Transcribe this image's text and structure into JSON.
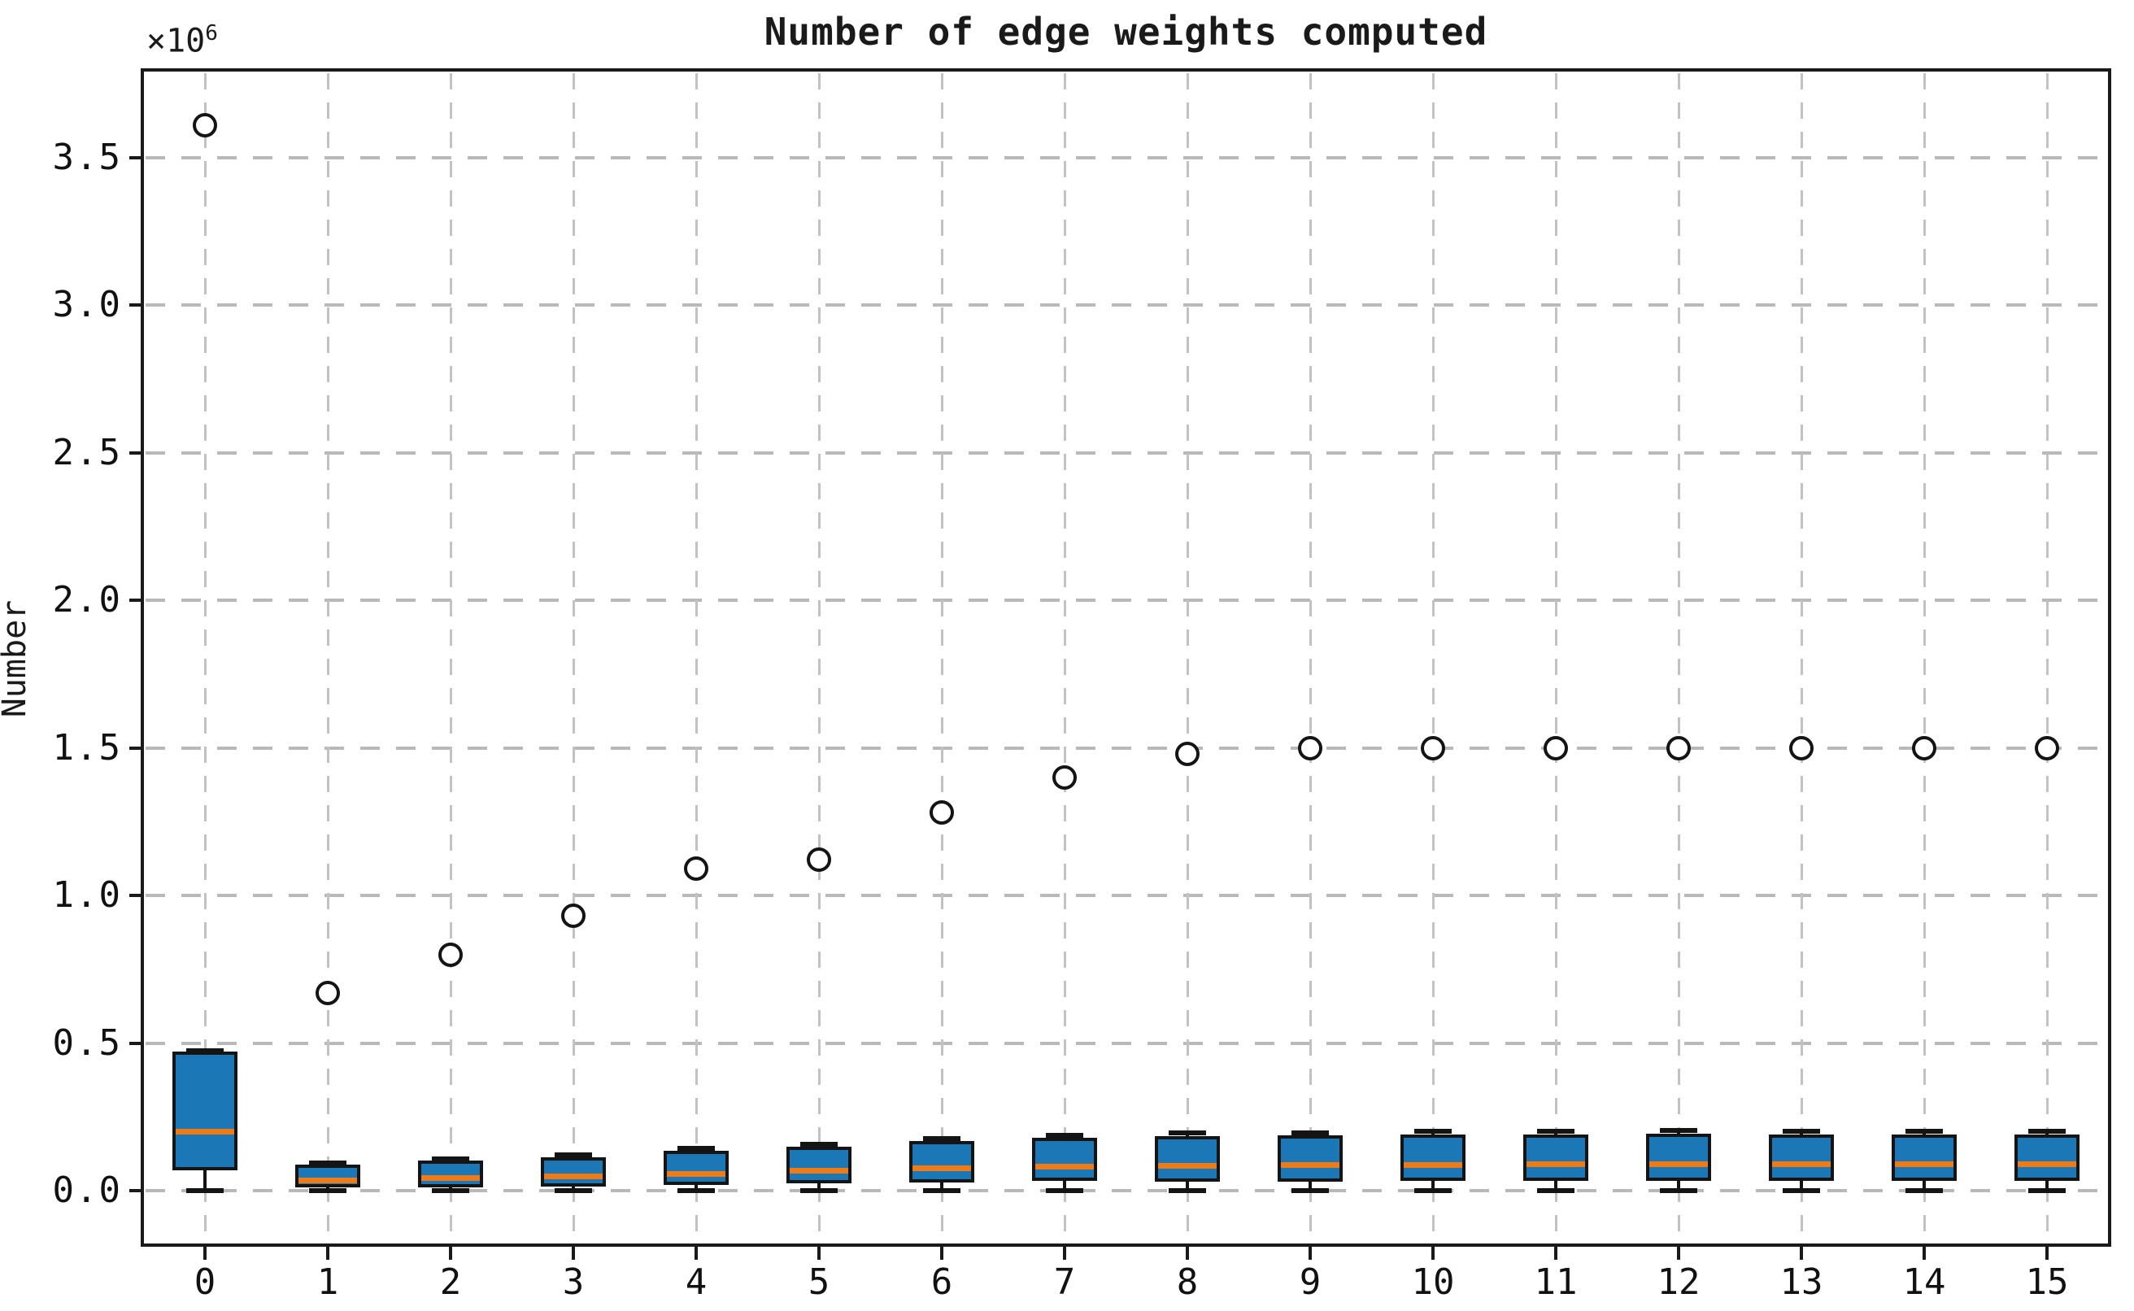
{
  "chart_data": {
    "type": "boxplot",
    "title": "Number of edge weights computed",
    "ylabel": "Number",
    "xlabel": "",
    "y_offset_base": "×10",
    "y_offset_exponent": "6",
    "y_unit_multiplier": 1000000,
    "grid": true,
    "legend_position": "none",
    "categories": [
      "0",
      "1",
      "2",
      "3",
      "4",
      "5",
      "6",
      "7",
      "8",
      "9",
      "10",
      "11",
      "12",
      "13",
      "14",
      "15"
    ],
    "y_ticks": [
      0.0,
      0.5,
      1.0,
      1.5,
      2.0,
      2.5,
      3.0,
      3.5
    ],
    "ylim": [
      -0.18,
      3.8
    ],
    "values_unit": "millions (×10^6)",
    "colors": {
      "box_fill": "#1b77b6",
      "median_line": "#ee7b16",
      "box_edge": "#141414",
      "grid_line": "#b9b9b9",
      "flier_edge": "#141414",
      "background": "#ffffff"
    },
    "boxes": [
      {
        "category": "0",
        "q1": 0.07,
        "median": 0.2,
        "q3": 0.47,
        "whisker_low": 0.0,
        "whisker_high": 0.475,
        "outlier": 3.61
      },
      {
        "category": "1",
        "q1": 0.012,
        "median": 0.035,
        "q3": 0.088,
        "whisker_low": 0.0,
        "whisker_high": 0.095,
        "outlier": 0.67
      },
      {
        "category": "2",
        "q1": 0.012,
        "median": 0.044,
        "q3": 0.102,
        "whisker_low": 0.0,
        "whisker_high": 0.108,
        "outlier": 0.8
      },
      {
        "category": "3",
        "q1": 0.015,
        "median": 0.05,
        "q3": 0.112,
        "whisker_low": 0.0,
        "whisker_high": 0.12,
        "outlier": 0.93
      },
      {
        "category": "4",
        "q1": 0.018,
        "median": 0.058,
        "q3": 0.135,
        "whisker_low": 0.0,
        "whisker_high": 0.142,
        "outlier": 1.09
      },
      {
        "category": "5",
        "q1": 0.025,
        "median": 0.068,
        "q3": 0.15,
        "whisker_low": 0.0,
        "whisker_high": 0.158,
        "outlier": 1.12
      },
      {
        "category": "6",
        "q1": 0.028,
        "median": 0.077,
        "q3": 0.168,
        "whisker_low": 0.0,
        "whisker_high": 0.176,
        "outlier": 1.28
      },
      {
        "category": "7",
        "q1": 0.034,
        "median": 0.082,
        "q3": 0.18,
        "whisker_low": 0.0,
        "whisker_high": 0.188,
        "outlier": 1.4
      },
      {
        "category": "8",
        "q1": 0.03,
        "median": 0.085,
        "q3": 0.185,
        "whisker_low": 0.0,
        "whisker_high": 0.196,
        "outlier": 1.48
      },
      {
        "category": "9",
        "q1": 0.03,
        "median": 0.088,
        "q3": 0.186,
        "whisker_low": 0.0,
        "whisker_high": 0.196,
        "outlier": 1.5
      },
      {
        "category": "10",
        "q1": 0.032,
        "median": 0.088,
        "q3": 0.19,
        "whisker_low": 0.0,
        "whisker_high": 0.2,
        "outlier": 1.5
      },
      {
        "category": "11",
        "q1": 0.032,
        "median": 0.09,
        "q3": 0.19,
        "whisker_low": 0.0,
        "whisker_high": 0.2,
        "outlier": 1.5
      },
      {
        "category": "12",
        "q1": 0.034,
        "median": 0.09,
        "q3": 0.194,
        "whisker_low": 0.0,
        "whisker_high": 0.204,
        "outlier": 1.5
      },
      {
        "category": "13",
        "q1": 0.034,
        "median": 0.092,
        "q3": 0.19,
        "whisker_low": 0.0,
        "whisker_high": 0.2,
        "outlier": 1.5
      },
      {
        "category": "14",
        "q1": 0.034,
        "median": 0.09,
        "q3": 0.19,
        "whisker_low": 0.0,
        "whisker_high": 0.2,
        "outlier": 1.5
      },
      {
        "category": "15",
        "q1": 0.034,
        "median": 0.092,
        "q3": 0.19,
        "whisker_low": 0.0,
        "whisker_high": 0.2,
        "outlier": 1.5
      }
    ]
  }
}
